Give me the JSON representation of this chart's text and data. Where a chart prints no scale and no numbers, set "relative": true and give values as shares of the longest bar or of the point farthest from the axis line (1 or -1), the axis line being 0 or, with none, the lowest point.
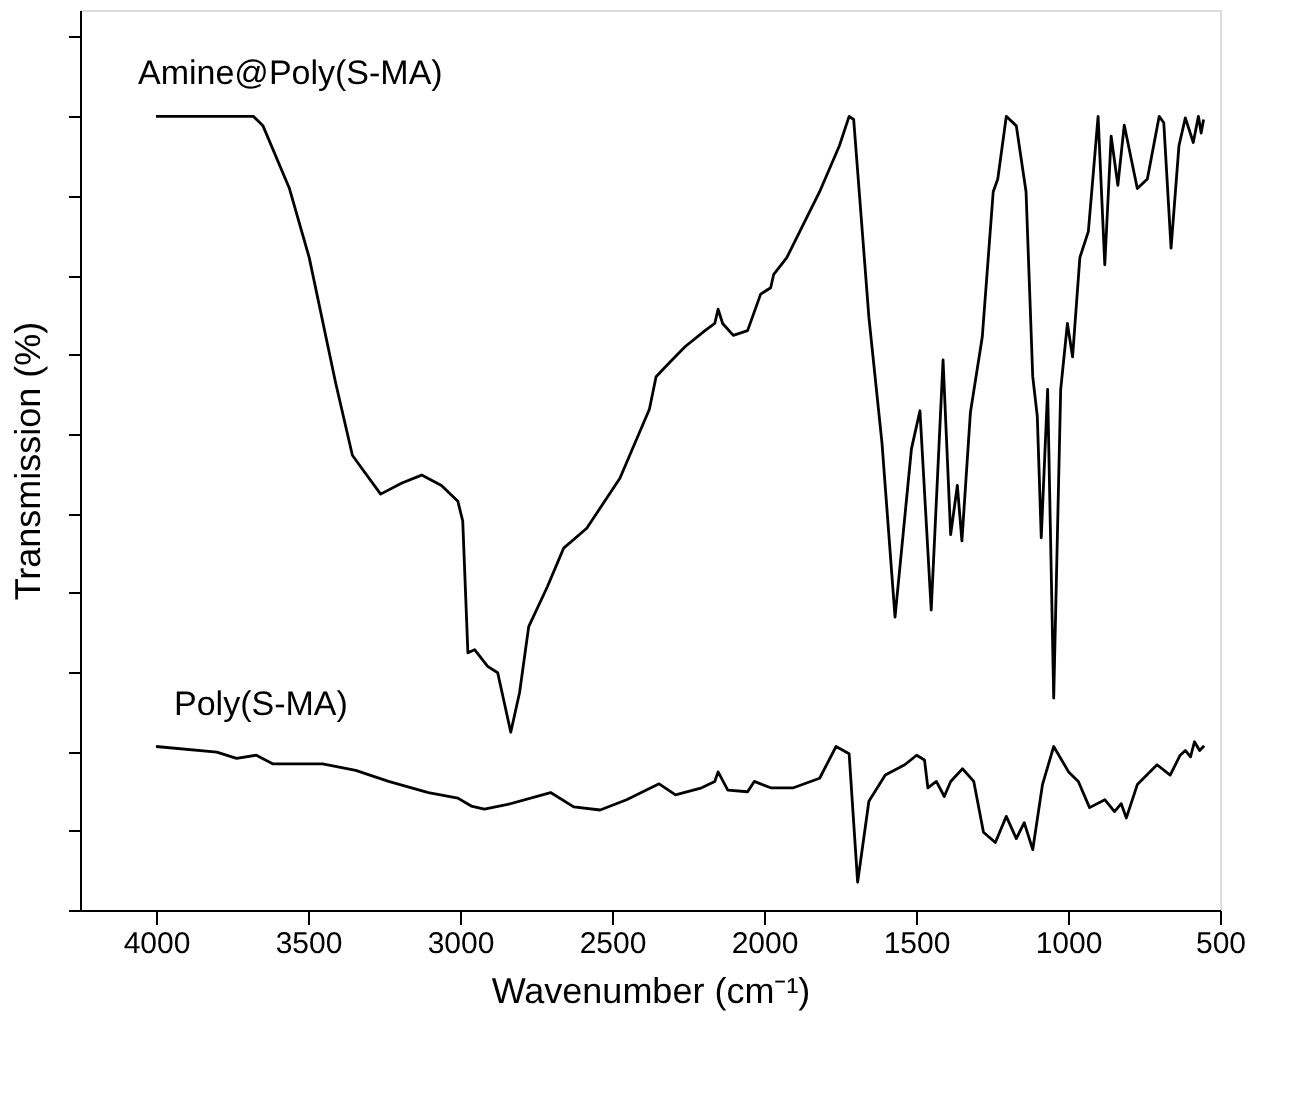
{
  "chart_data": {
    "type": "line",
    "relative": true,
    "xlabel": "Wavenumber (cm⁻¹)",
    "ylabel": "Transmission (%)",
    "xlim": [
      4250,
      500
    ],
    "xticks": [
      4000,
      3500,
      3000,
      2500,
      2000,
      1500,
      1000,
      500
    ],
    "tick_labels": "x",
    "grid": false,
    "legend": false,
    "marker": "none",
    "line_style": "solid",
    "series": [
      {
        "name": "Amine@Poly(S-MA)",
        "color": "#000000",
        "x": [
          4000,
          3680,
          3648,
          3561,
          3496,
          3409,
          3354,
          3322,
          3261,
          3191,
          3126,
          3061,
          3007,
          2991,
          2974,
          2952,
          2909,
          2876,
          2833,
          2804,
          2774,
          2713,
          2659,
          2583,
          2474,
          2377,
          2355,
          2313,
          2259,
          2194,
          2162,
          2151,
          2136,
          2101,
          2054,
          2011,
          1978,
          1968,
          1925,
          1817,
          1752,
          1720,
          1705,
          1655,
          1612,
          1569,
          1515,
          1487,
          1450,
          1411,
          1386,
          1364,
          1349,
          1321,
          1282,
          1246,
          1231,
          1203,
          1170,
          1138,
          1116,
          1101,
          1088,
          1067,
          1047,
          1024,
          1002,
          985,
          961,
          933,
          901,
          879,
          858,
          836,
          815,
          772,
          739,
          700,
          685,
          661,
          635,
          614,
          588,
          571,
          562,
          554
        ],
        "values": [
          1.0,
          1.0,
          0.988,
          0.909,
          0.822,
          0.664,
          0.573,
          0.556,
          0.524,
          0.538,
          0.548,
          0.535,
          0.515,
          0.49,
          0.324,
          0.328,
          0.307,
          0.299,
          0.224,
          0.274,
          0.357,
          0.407,
          0.456,
          0.481,
          0.544,
          0.631,
          0.672,
          0.689,
          0.71,
          0.73,
          0.739,
          0.757,
          0.739,
          0.724,
          0.73,
          0.776,
          0.784,
          0.801,
          0.822,
          0.905,
          0.963,
          1.0,
          0.996,
          0.747,
          0.589,
          0.369,
          0.581,
          0.629,
          0.378,
          0.693,
          0.473,
          0.535,
          0.465,
          0.627,
          0.722,
          0.905,
          0.921,
          1.0,
          0.988,
          0.905,
          0.672,
          0.622,
          0.469,
          0.656,
          0.267,
          0.656,
          0.739,
          0.697,
          0.822,
          0.855,
          1.0,
          0.813,
          0.975,
          0.913,
          0.989,
          0.909,
          0.921,
          1.0,
          0.992,
          0.834,
          0.963,
          0.998,
          0.967,
          1.0,
          0.979,
          0.996
        ]
      },
      {
        "name": "Poly(S-MA)",
        "color": "#000000",
        "x": [
          4000,
          3800,
          3735,
          3670,
          3615,
          3452,
          3343,
          3235,
          3104,
          3007,
          2963,
          2920,
          2843,
          2702,
          2626,
          2539,
          2452,
          2345,
          2291,
          2205,
          2162,
          2151,
          2119,
          2054,
          2032,
          1978,
          1903,
          1817,
          1763,
          1720,
          1692,
          1655,
          1601,
          1537,
          1498,
          1472,
          1461,
          1433,
          1407,
          1386,
          1347,
          1310,
          1278,
          1239,
          1203,
          1170,
          1144,
          1116,
          1084,
          1047,
          998,
          966,
          929,
          879,
          847,
          825,
          808,
          772,
          707,
          664,
          631,
          614,
          597,
          584,
          567,
          552
        ],
        "values": [
          0.206,
          0.199,
          0.191,
          0.195,
          0.184,
          0.184,
          0.176,
          0.162,
          0.148,
          0.141,
          0.131,
          0.127,
          0.133,
          0.148,
          0.13,
          0.126,
          0.139,
          0.159,
          0.145,
          0.154,
          0.162,
          0.174,
          0.151,
          0.149,
          0.162,
          0.154,
          0.154,
          0.166,
          0.206,
          0.197,
          0.035,
          0.137,
          0.17,
          0.183,
          0.195,
          0.189,
          0.154,
          0.162,
          0.143,
          0.162,
          0.178,
          0.162,
          0.098,
          0.085,
          0.118,
          0.09,
          0.11,
          0.076,
          0.158,
          0.206,
          0.174,
          0.162,
          0.129,
          0.139,
          0.124,
          0.134,
          0.116,
          0.158,
          0.183,
          0.17,
          0.195,
          0.201,
          0.193,
          0.212,
          0.201,
          0.207
        ]
      }
    ]
  }
}
